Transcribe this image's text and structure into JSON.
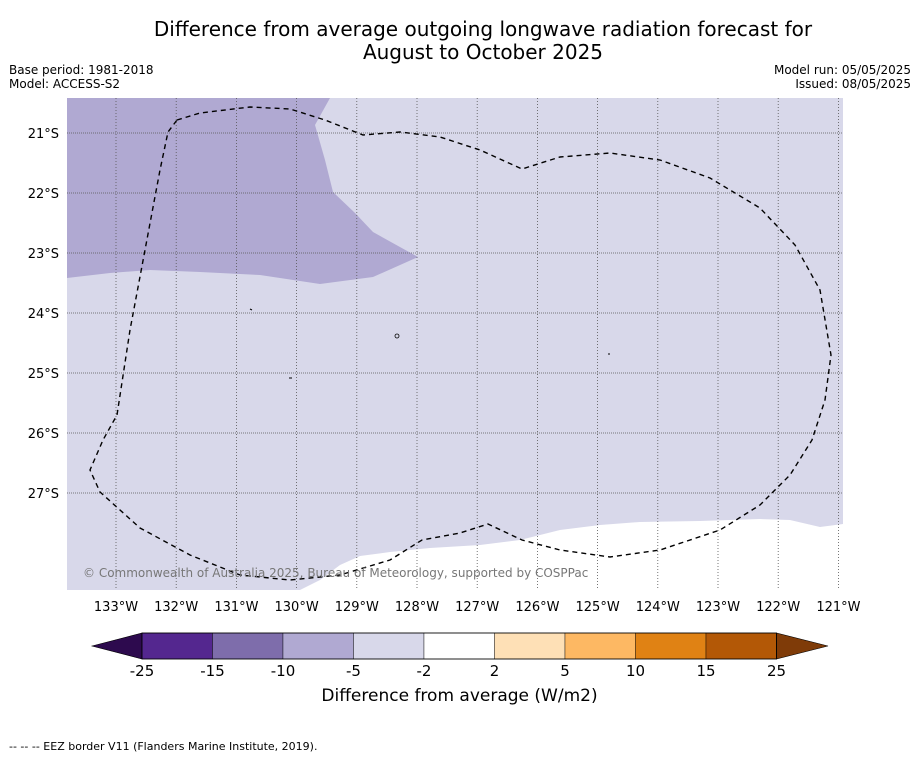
{
  "title_line1": "Difference from average outgoing longwave radiation forecast for",
  "title_line2": "August to October 2025",
  "base_period": "Base period: 1981-2018",
  "model": "Model: ACCESS-S2",
  "model_run": "Model run: 05/05/2025",
  "issued": "Issued: 08/05/2025",
  "lon_labels": [
    "133°W",
    "132°W",
    "131°W",
    "130°W",
    "129°W",
    "128°W",
    "127°W",
    "126°W",
    "125°W",
    "124°W",
    "123°W",
    "122°W",
    "121°W"
  ],
  "lat_labels": [
    "21°S",
    "22°S",
    "23°S",
    "24°S",
    "25°S",
    "26°S",
    "27°S"
  ],
  "copyright": "© Commonwealth of Australia 2025, Bureau of Meteorology, supported by COSPPac",
  "colorbar": {
    "ticks": [
      "-25",
      "-15",
      "-10",
      "-5",
      "-2",
      "2",
      "5",
      "10",
      "15",
      "25"
    ],
    "colors": [
      "#2d0a4e",
      "#54278f",
      "#7e6dab",
      "#b0a9d2",
      "#d8d8ea",
      "#ffffff",
      "#fee0b6",
      "#fdb863",
      "#e08214",
      "#b35806",
      "#7f3b08"
    ],
    "label": "Difference from average (W/m2)"
  },
  "footnote": "--  --  -- EEZ border V11 (Flanders Marine Institute, 2019)."
}
